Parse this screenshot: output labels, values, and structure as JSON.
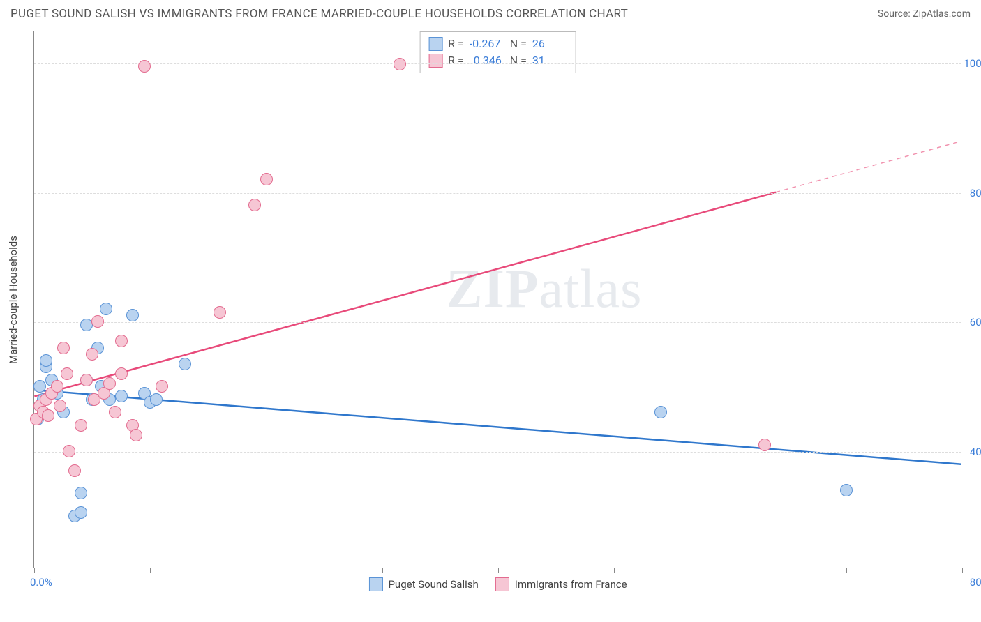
{
  "header": {
    "title": "PUGET SOUND SALISH VS IMMIGRANTS FROM FRANCE MARRIED-COUPLE HOUSEHOLDS CORRELATION CHART",
    "source": "Source: ZipAtlas.com"
  },
  "chart": {
    "type": "scatter",
    "ylabel": "Married-couple Households",
    "xlim": [
      0,
      80
    ],
    "ylim": [
      22,
      105
    ],
    "xtick_positions": [
      0,
      10,
      20,
      30,
      40,
      50,
      60,
      70,
      80
    ],
    "xtick_label_left": "0.0%",
    "xtick_label_right": "80.0%",
    "ytick_positions": [
      40,
      60,
      80,
      100
    ],
    "ytick_labels": [
      "40.0%",
      "60.0%",
      "80.0%",
      "100.0%"
    ],
    "grid_color": "#dddddd",
    "axis_color": "#888888",
    "background_color": "#ffffff",
    "watermark": "ZIPatlas",
    "series": [
      {
        "name": "Puget Sound Salish",
        "fill": "#b9d3f0",
        "stroke": "#5a93d6",
        "line_color": "#2f77cc",
        "R": "-0.267",
        "N": "26",
        "trend": {
          "x1": 0,
          "y1": 49.5,
          "x2": 80,
          "y2": 38.0,
          "solid_end_x": 80
        },
        "points": [
          [
            0.3,
            45
          ],
          [
            0.5,
            50
          ],
          [
            0.8,
            48
          ],
          [
            1.0,
            53
          ],
          [
            1.0,
            54
          ],
          [
            1.5,
            51
          ],
          [
            2,
            49
          ],
          [
            2.5,
            46
          ],
          [
            3.5,
            30
          ],
          [
            4,
            30.5
          ],
          [
            4,
            33.5
          ],
          [
            4.5,
            59.5
          ],
          [
            4.5,
            51
          ],
          [
            5,
            48
          ],
          [
            5.5,
            56
          ],
          [
            5.8,
            50
          ],
          [
            6.2,
            62
          ],
          [
            6.5,
            48
          ],
          [
            7.5,
            48.5
          ],
          [
            8.5,
            61
          ],
          [
            9.5,
            49
          ],
          [
            10,
            47.5
          ],
          [
            10.5,
            48
          ],
          [
            13,
            53.5
          ],
          [
            54,
            46
          ],
          [
            70,
            34
          ]
        ]
      },
      {
        "name": "Immigrants from France",
        "fill": "#f6c6d4",
        "stroke": "#e36b8f",
        "line_color": "#e84a7a",
        "R": "0.346",
        "N": "31",
        "trend": {
          "x1": 0,
          "y1": 48.5,
          "x2": 80,
          "y2": 88.0,
          "solid_end_x": 64
        },
        "points": [
          [
            0.2,
            45
          ],
          [
            0.5,
            47
          ],
          [
            0.8,
            46
          ],
          [
            1.0,
            48
          ],
          [
            1.2,
            45.5
          ],
          [
            1.5,
            49
          ],
          [
            2,
            50
          ],
          [
            2.2,
            47
          ],
          [
            2.5,
            56
          ],
          [
            2.8,
            52
          ],
          [
            3,
            40
          ],
          [
            3.5,
            37
          ],
          [
            4,
            44
          ],
          [
            4.5,
            51
          ],
          [
            5,
            55
          ],
          [
            5.2,
            48
          ],
          [
            5.5,
            60
          ],
          [
            6,
            49
          ],
          [
            6.5,
            50.5
          ],
          [
            7,
            46
          ],
          [
            7.5,
            52
          ],
          [
            7.5,
            57
          ],
          [
            8.5,
            44
          ],
          [
            8.8,
            42.5
          ],
          [
            9.5,
            99.5
          ],
          [
            11,
            50
          ],
          [
            16,
            61.5
          ],
          [
            19,
            78
          ],
          [
            20,
            82
          ],
          [
            31.5,
            99.8
          ],
          [
            63,
            41
          ]
        ]
      }
    ],
    "legend_bottom": [
      {
        "label": "Puget Sound Salish",
        "fill": "#b9d3f0",
        "stroke": "#5a93d6"
      },
      {
        "label": "Immigrants from France",
        "fill": "#f6c6d4",
        "stroke": "#e36b8f"
      }
    ]
  }
}
